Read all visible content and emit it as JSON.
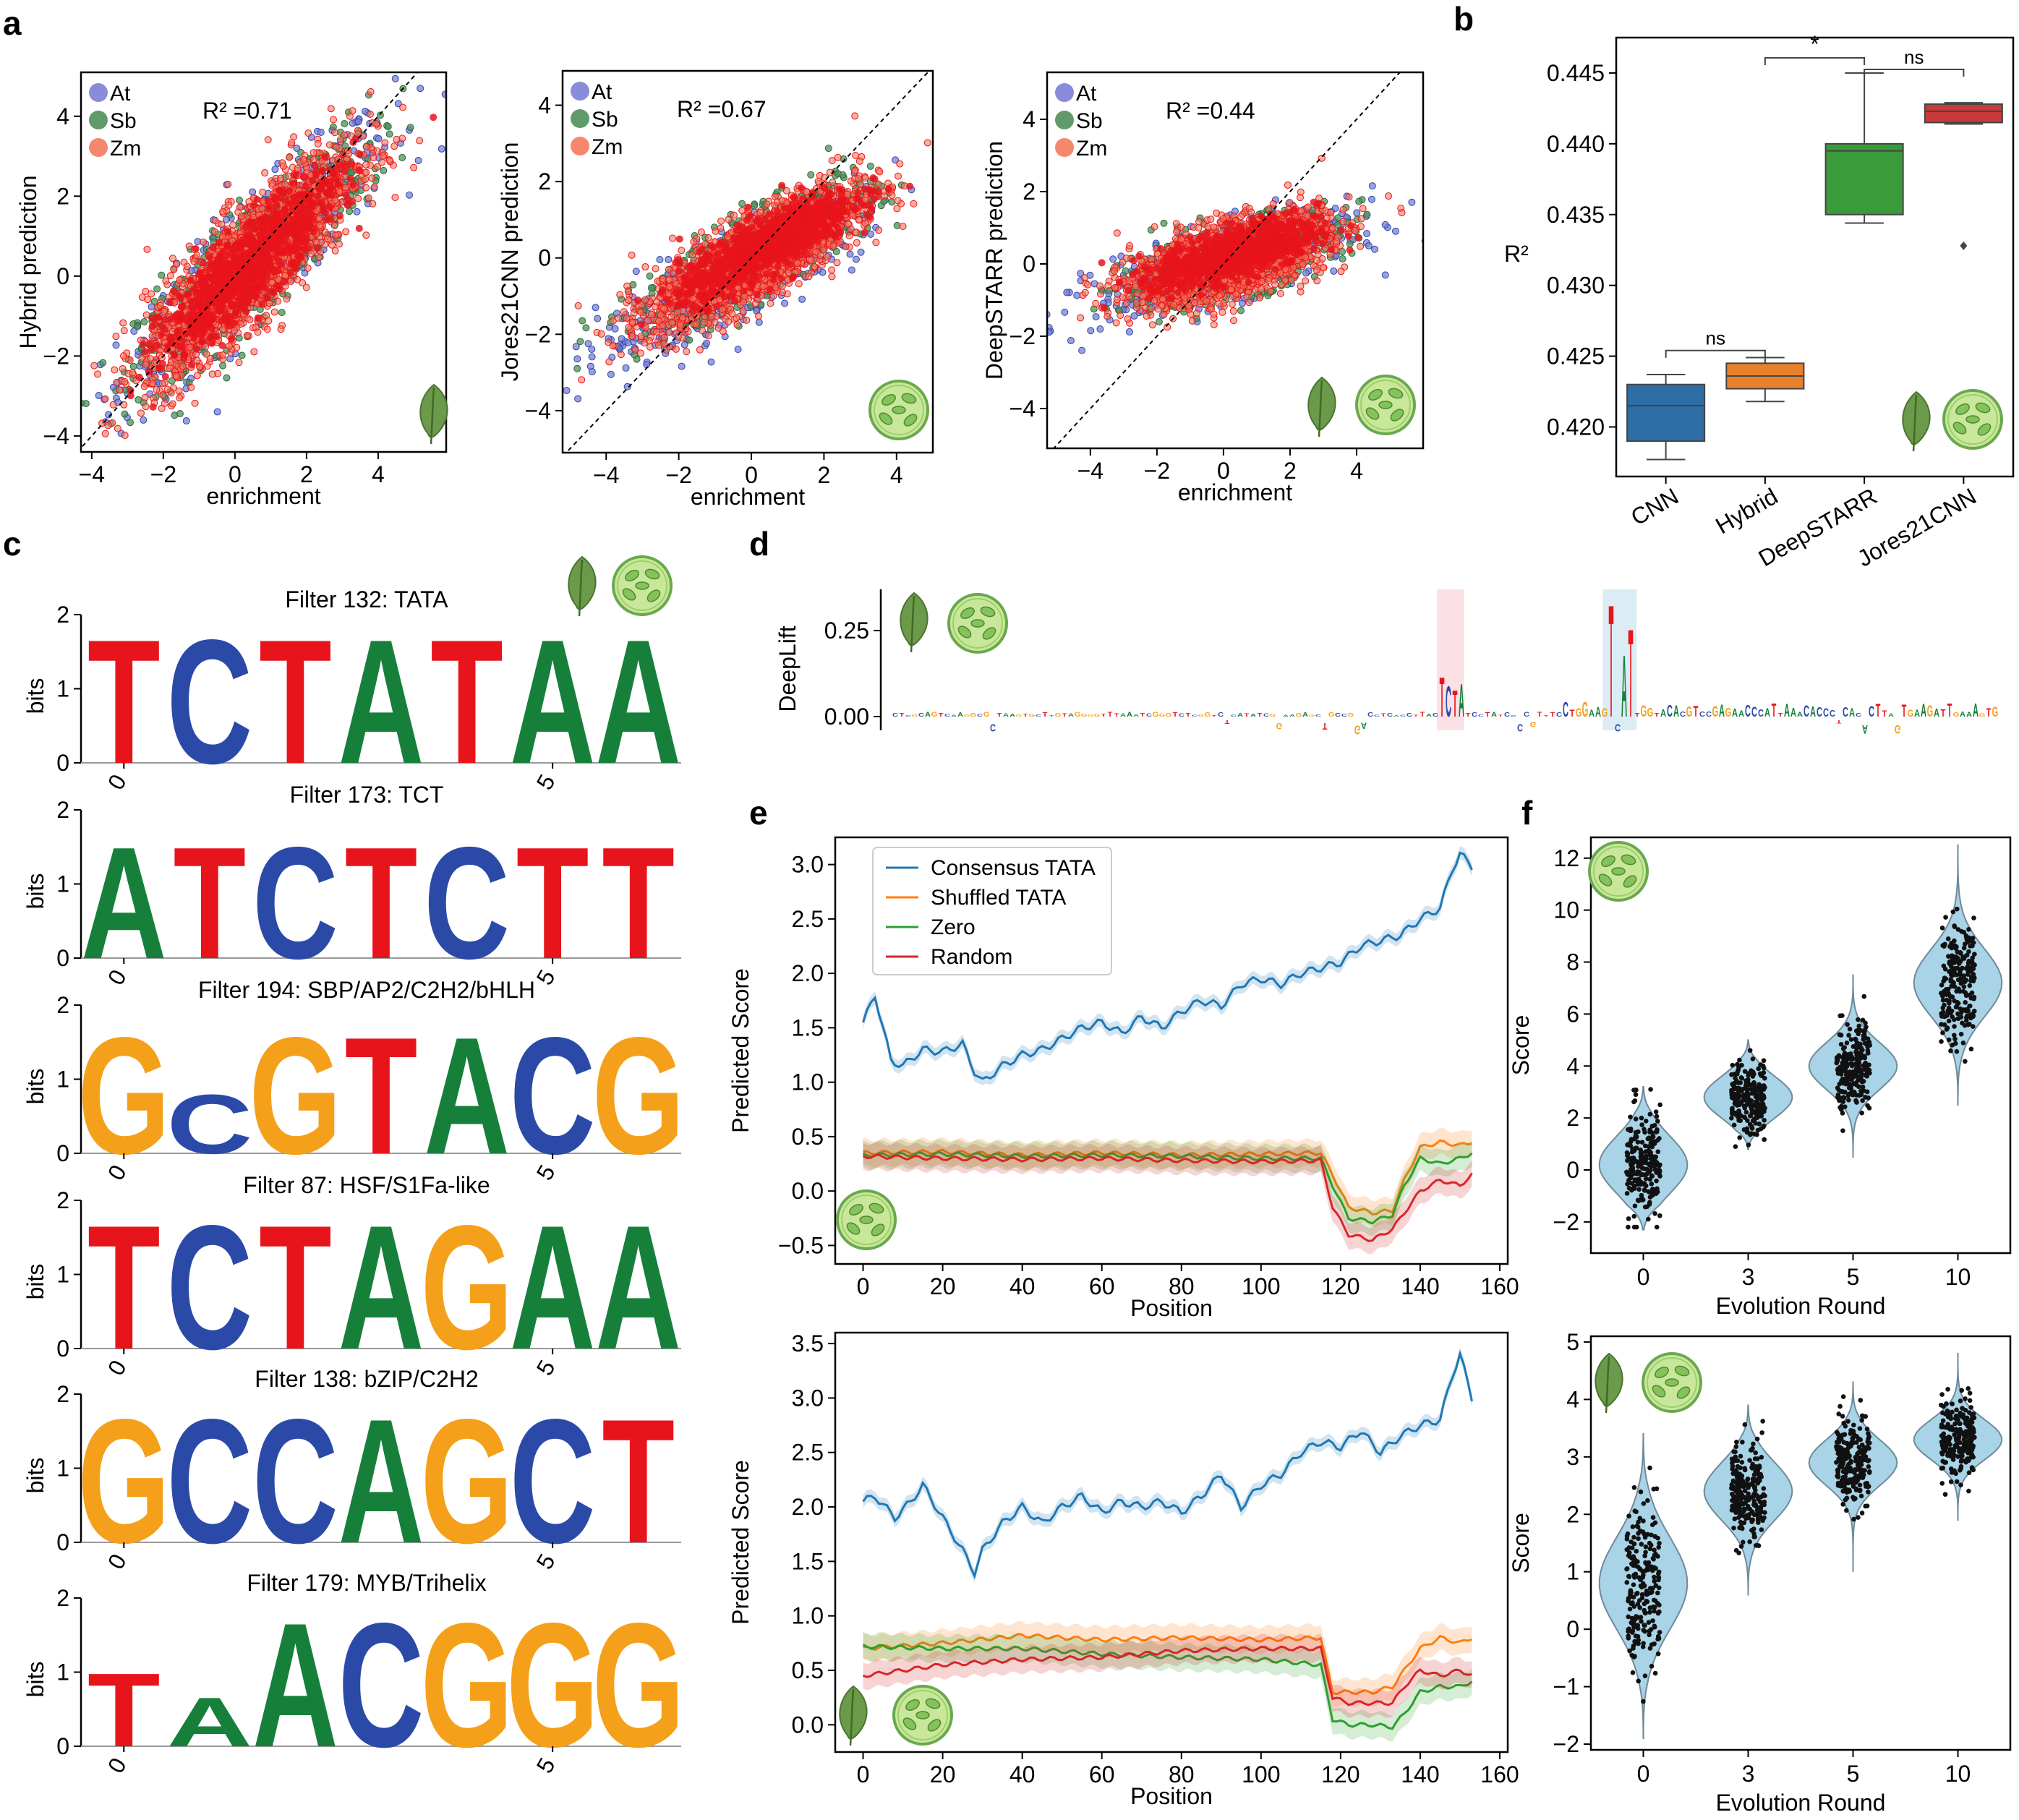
{
  "panel_labels": [
    "a",
    "b",
    "c",
    "d",
    "e",
    "f"
  ],
  "colors": {
    "At": "#7b7fd6",
    "Sb": "#4f8f5a",
    "Zm": "#f47a5f",
    "red": "#e8141b",
    "blue": "#2b4aa8",
    "green": "#16803a",
    "orange": "#f5a01a",
    "consensus": "#1f77b4",
    "shuffled": "#ff7f0e",
    "zero": "#2ca02c",
    "random": "#d62728"
  },
  "chart_data": [
    {
      "id": "a1",
      "type": "scatter",
      "xlabel": "enrichment",
      "ylabel": "Hybrid prediction",
      "annotation": "R² =0.71",
      "xlim": [
        -4.3,
        5.9
      ],
      "ylim": [
        -4.4,
        5.1
      ],
      "xticks": [
        -4,
        -2,
        0,
        2,
        4
      ],
      "yticks": [
        -4,
        -2,
        0,
        2,
        4
      ],
      "legend": [
        "At",
        "Sb",
        "Zm"
      ],
      "legend_position": "top-left",
      "series": [
        {
          "name": "At",
          "center": [
            0.6,
            0.5
          ]
        },
        {
          "name": "Sb",
          "center": [
            0.5,
            0.4
          ]
        },
        {
          "name": "Zm",
          "center": [
            0.4,
            0.3
          ]
        }
      ]
    },
    {
      "id": "a2",
      "type": "scatter",
      "xlabel": "enrichment",
      "ylabel": "Jores21CNN prediction",
      "annotation": "R² =0.67",
      "xlim": [
        -5.2,
        5.0
      ],
      "ylim": [
        -5.1,
        4.9
      ],
      "xticks": [
        -4,
        -2,
        0,
        2,
        4
      ],
      "yticks": [
        -4,
        -2,
        0,
        2,
        4
      ],
      "legend": [
        "At",
        "Sb",
        "Zm"
      ],
      "legend_position": "top-left",
      "series": [
        {
          "name": "At",
          "center": [
            -0.5,
            -0.6
          ]
        },
        {
          "name": "Sb",
          "center": [
            0.2,
            0.1
          ]
        },
        {
          "name": "Zm",
          "center": [
            0.1,
            0.0
          ]
        }
      ]
    },
    {
      "id": "a3",
      "type": "scatter",
      "xlabel": "enrichment",
      "ylabel": "DeepSTARR prediction",
      "annotation": "R² =0.44",
      "xlim": [
        -5.3,
        6.0
      ],
      "ylim": [
        -5.1,
        5.3
      ],
      "xticks": [
        -4,
        -2,
        0,
        2,
        4
      ],
      "yticks": [
        -4,
        -2,
        0,
        2,
        4
      ],
      "legend": [
        "At",
        "Sb",
        "Zm"
      ],
      "legend_position": "top-left",
      "series": [
        {
          "name": "At",
          "center": [
            0.0,
            0.0
          ]
        },
        {
          "name": "Sb",
          "center": [
            0.2,
            0.1
          ]
        },
        {
          "name": "Zm",
          "center": [
            0.2,
            0.1
          ]
        }
      ]
    },
    {
      "id": "b",
      "type": "box",
      "ylabel": "R²",
      "categories": [
        "CNN",
        "Hybrid",
        "DeepSTARR",
        "Jores21CNN"
      ],
      "colors": [
        "#2e6ea6",
        "#e8812c",
        "#3a9b3a",
        "#c83a3a"
      ],
      "ylim": [
        0.4165,
        0.4475
      ],
      "yticks": [
        0.42,
        0.425,
        0.43,
        0.435,
        0.44,
        0.445
      ],
      "boxes": [
        {
          "q1": 0.419,
          "med": 0.4215,
          "q3": 0.423,
          "wl": 0.4177,
          "wh": 0.4237
        },
        {
          "q1": 0.4227,
          "med": 0.4236,
          "q3": 0.4245,
          "wl": 0.4218,
          "wh": 0.4249
        },
        {
          "q1": 0.435,
          "med": 0.4395,
          "q3": 0.44,
          "wl": 0.4344,
          "wh": 0.445
        },
        {
          "q1": 0.4415,
          "med": 0.4423,
          "q3": 0.4428,
          "wl": 0.4414,
          "wh": 0.4429,
          "outlier": 0.4328
        }
      ],
      "significance": [
        {
          "pair": [
            0,
            1
          ],
          "label": "ns"
        },
        {
          "pair": [
            1,
            2
          ],
          "label": "*"
        },
        {
          "pair": [
            2,
            3
          ],
          "label": "ns"
        }
      ]
    },
    {
      "id": "c",
      "type": "sequence-logo",
      "ylabel": "bits",
      "yticks": [
        0,
        1,
        2
      ],
      "xticks": [
        "0",
        "5"
      ],
      "filters": [
        {
          "title": "Filter 132: TATA",
          "letters": [
            "T",
            "C",
            "T",
            "A",
            "T",
            "A",
            "A"
          ],
          "heights": [
            1.72,
            1.72,
            1.72,
            1.72,
            1.72,
            1.72,
            1.72
          ]
        },
        {
          "title": "Filter 173: TCT",
          "letters": [
            "A",
            "T",
            "C",
            "T",
            "C",
            "T",
            "T"
          ],
          "heights": [
            1.55,
            1.55,
            1.55,
            1.55,
            1.55,
            1.55,
            1.55
          ]
        },
        {
          "title": "Filter 194: SBP/AP2/C2H2/bHLH",
          "letters": [
            "G",
            "C",
            "G",
            "T",
            "A",
            "C",
            "G"
          ],
          "heights": [
            1.62,
            0.82,
            1.62,
            1.62,
            1.62,
            1.62,
            1.62
          ]
        },
        {
          "title": "Filter 87: HSF/S1Fa-like",
          "letters": [
            "T",
            "C",
            "T",
            "A",
            "G",
            "A",
            "A"
          ],
          "heights": [
            1.72,
            1.72,
            1.72,
            1.72,
            1.72,
            1.72,
            1.72
          ]
        },
        {
          "title": "Filter 138: bZIP/C2H2",
          "letters": [
            "G",
            "C",
            "C",
            "A",
            "G",
            "C",
            "T"
          ],
          "heights": [
            1.72,
            1.72,
            1.72,
            1.72,
            1.72,
            1.72,
            1.72
          ]
        },
        {
          "title": "Filter 179: MYB/Trihelix",
          "letters": [
            "T",
            "A",
            "A",
            "C",
            "G",
            "G",
            "G"
          ],
          "heights": [
            1.02,
            0.68,
            1.72,
            1.72,
            1.72,
            1.72,
            1.72
          ]
        }
      ]
    },
    {
      "id": "d",
      "type": "attribution-track",
      "ylabel": "DeepLift",
      "yticks": [
        0.0,
        0.25
      ],
      "ylim": [
        -0.04,
        0.37
      ],
      "highlights": [
        {
          "start": 0.493,
          "end": 0.517,
          "color": "#fbe1e6"
        },
        {
          "start": 0.64,
          "end": 0.67,
          "color": "#dcecf5"
        }
      ]
    },
    {
      "id": "e1",
      "type": "line",
      "xlabel": "Position",
      "ylabel": "Predicted Score",
      "xlim": [
        -7,
        162
      ],
      "ylim": [
        -0.67,
        3.25
      ],
      "xticks": [
        0,
        20,
        40,
        60,
        80,
        100,
        120,
        140,
        160
      ],
      "yticks": [
        -0.5,
        0.0,
        0.5,
        1.0,
        1.5,
        2.0,
        2.5,
        3.0
      ],
      "legend_position": "top-left",
      "series": [
        {
          "name": "Consensus TATA",
          "x": [
            0,
            3,
            5,
            7,
            10,
            15,
            20,
            25,
            28,
            30,
            35,
            40,
            45,
            50,
            55,
            60,
            65,
            70,
            75,
            80,
            85,
            90,
            95,
            100,
            105,
            110,
            115,
            120,
            125,
            130,
            135,
            140,
            145,
            148,
            150,
            153
          ],
          "y": [
            1.55,
            1.8,
            1.5,
            1.2,
            1.15,
            1.3,
            1.28,
            1.35,
            1.1,
            1.0,
            1.15,
            1.25,
            1.3,
            1.4,
            1.5,
            1.55,
            1.45,
            1.6,
            1.5,
            1.65,
            1.75,
            1.7,
            1.9,
            1.95,
            1.9,
            2.0,
            2.05,
            2.1,
            2.25,
            2.3,
            2.35,
            2.5,
            2.6,
            2.95,
            3.1,
            2.98
          ]
        },
        {
          "name": "Shuffled TATA",
          "x": [
            0,
            20,
            40,
            60,
            80,
            100,
            115,
            118,
            122,
            128,
            133,
            136,
            140,
            145,
            150,
            153
          ],
          "y": [
            0.35,
            0.36,
            0.33,
            0.35,
            0.33,
            0.34,
            0.35,
            0.15,
            -0.15,
            -0.2,
            -0.18,
            0.1,
            0.4,
            0.45,
            0.42,
            0.45
          ]
        },
        {
          "name": "Zero",
          "x": [
            0,
            20,
            40,
            60,
            80,
            100,
            115,
            118,
            122,
            128,
            133,
            136,
            140,
            145,
            150,
            153
          ],
          "y": [
            0.33,
            0.34,
            0.32,
            0.33,
            0.32,
            0.3,
            0.3,
            0.05,
            -0.25,
            -0.28,
            -0.22,
            0.05,
            0.3,
            0.25,
            0.3,
            0.35
          ]
        },
        {
          "name": "Random",
          "x": [
            0,
            20,
            40,
            60,
            80,
            100,
            115,
            118,
            122,
            128,
            133,
            136,
            140,
            145,
            150,
            153
          ],
          "y": [
            0.32,
            0.3,
            0.29,
            0.3,
            0.28,
            0.27,
            0.28,
            -0.15,
            -0.4,
            -0.45,
            -0.35,
            -0.2,
            0.0,
            0.1,
            0.05,
            0.15
          ]
        }
      ]
    },
    {
      "id": "e2",
      "type": "line",
      "xlabel": "Position",
      "ylabel": "Predicted Score",
      "xlim": [
        -7,
        162
      ],
      "ylim": [
        -0.25,
        3.6
      ],
      "xticks": [
        0,
        20,
        40,
        60,
        80,
        100,
        120,
        140,
        160
      ],
      "yticks": [
        0.0,
        0.5,
        1.0,
        1.5,
        2.0,
        2.5,
        3.0,
        3.5
      ],
      "series": [
        {
          "name": "Consensus TATA",
          "x": [
            0,
            3,
            8,
            12,
            15,
            20,
            25,
            28,
            30,
            35,
            40,
            45,
            50,
            55,
            60,
            65,
            70,
            75,
            80,
            85,
            90,
            95,
            100,
            105,
            110,
            115,
            120,
            125,
            130,
            135,
            140,
            145,
            148,
            150,
            153
          ],
          "y": [
            2.05,
            2.1,
            1.9,
            2.05,
            2.2,
            1.9,
            1.6,
            1.4,
            1.6,
            1.85,
            2.0,
            1.85,
            2.0,
            2.1,
            1.95,
            2.05,
            2.0,
            2.05,
            1.95,
            2.1,
            2.3,
            2.0,
            2.2,
            2.3,
            2.5,
            2.6,
            2.55,
            2.7,
            2.5,
            2.65,
            2.75,
            2.8,
            3.2,
            3.4,
            3.0
          ]
        },
        {
          "name": "Shuffled TATA",
          "x": [
            0,
            20,
            40,
            60,
            80,
            100,
            115,
            118,
            122,
            128,
            133,
            136,
            140,
            145,
            150,
            153
          ],
          "y": [
            0.7,
            0.75,
            0.82,
            0.78,
            0.8,
            0.78,
            0.8,
            0.3,
            0.3,
            0.3,
            0.35,
            0.5,
            0.7,
            0.8,
            0.75,
            0.8
          ]
        },
        {
          "name": "Zero",
          "x": [
            0,
            20,
            40,
            60,
            80,
            100,
            115,
            118,
            122,
            128,
            133,
            136,
            140,
            145,
            150,
            153
          ],
          "y": [
            0.72,
            0.7,
            0.7,
            0.65,
            0.62,
            0.6,
            0.55,
            0.05,
            0.0,
            0.0,
            -0.02,
            0.1,
            0.3,
            0.35,
            0.35,
            0.4
          ]
        },
        {
          "name": "Random",
          "x": [
            0,
            20,
            40,
            60,
            80,
            100,
            115,
            118,
            122,
            128,
            133,
            136,
            140,
            145,
            150,
            153
          ],
          "y": [
            0.45,
            0.55,
            0.6,
            0.62,
            0.68,
            0.7,
            0.7,
            0.25,
            0.2,
            0.2,
            0.2,
            0.35,
            0.5,
            0.45,
            0.5,
            0.45
          ]
        }
      ]
    },
    {
      "id": "f1",
      "type": "violin",
      "xlabel": "Evolution Round",
      "ylabel": "Score",
      "categories": [
        "0",
        "3",
        "5",
        "10"
      ],
      "ylim": [
        -3.2,
        12.8
      ],
      "yticks": [
        -2,
        0,
        2,
        4,
        6,
        8,
        10,
        12
      ],
      "violins": [
        {
          "min": -2.3,
          "max": 3.2,
          "center": 0.2,
          "spread": 1.1
        },
        {
          "min": 0.8,
          "max": 5.0,
          "center": 2.8,
          "spread": 0.8
        },
        {
          "min": 0.5,
          "max": 7.5,
          "center": 4.0,
          "spread": 0.9
        },
        {
          "min": 2.5,
          "max": 12.5,
          "center": 7.2,
          "spread": 1.3
        }
      ]
    },
    {
      "id": "f2",
      "type": "violin",
      "xlabel": "Evolution Round",
      "ylabel": "Score",
      "categories": [
        "0",
        "3",
        "5",
        "10"
      ],
      "ylim": [
        -2.1,
        5.1
      ],
      "yticks": [
        -2,
        -1,
        0,
        1,
        2,
        3,
        4,
        5
      ],
      "violins": [
        {
          "min": -1.9,
          "max": 3.4,
          "center": 0.8,
          "spread": 0.8
        },
        {
          "min": 0.6,
          "max": 3.9,
          "center": 2.4,
          "spread": 0.5
        },
        {
          "min": 1.0,
          "max": 4.3,
          "center": 2.9,
          "spread": 0.4
        },
        {
          "min": 1.9,
          "max": 4.8,
          "center": 3.3,
          "spread": 0.35
        }
      ]
    }
  ]
}
